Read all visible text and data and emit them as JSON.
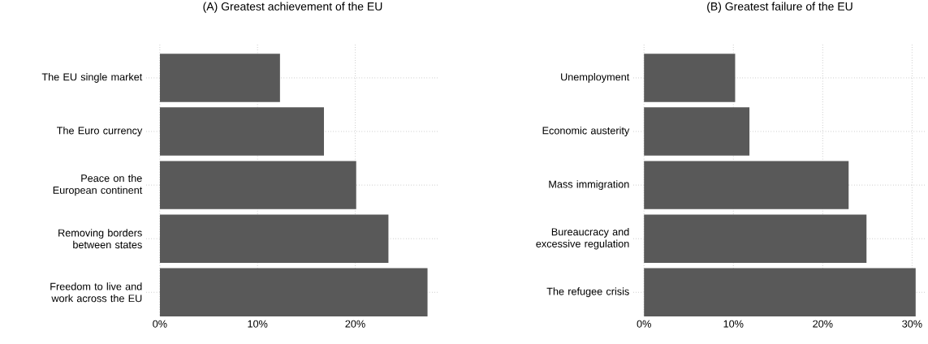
{
  "chart_data": [
    {
      "type": "bar",
      "orientation": "horizontal",
      "title": "(A) Greatest achievement of the EU",
      "categories": [
        "The EU single market",
        "The Euro currency",
        "Peace on the European continent",
        "Removing borders between states",
        "Freedom to live and work across the EU"
      ],
      "values": [
        12.3,
        16.8,
        20.1,
        23.4,
        27.4
      ],
      "color": "#595959",
      "xlim": [
        -1.4,
        28.6
      ],
      "xticks": [
        {
          "value": 0,
          "label": "0%"
        },
        {
          "value": 10,
          "label": "10%"
        },
        {
          "value": 20,
          "label": "20%"
        }
      ],
      "grid": true
    },
    {
      "type": "bar",
      "orientation": "horizontal",
      "title": "(B) Greatest failure of the EU",
      "categories": [
        "Unemployment",
        "Economic austerity",
        "Mass immigration",
        "Bureaucracy and excessive regulation",
        "The refugee crisis"
      ],
      "values": [
        10.2,
        11.8,
        22.9,
        24.9,
        30.4
      ],
      "color": "#595959",
      "xlim": [
        -1.2,
        31.6
      ],
      "xticks": [
        {
          "value": 0,
          "label": "0%"
        },
        {
          "value": 10,
          "label": "10%"
        },
        {
          "value": 20,
          "label": "20%"
        },
        {
          "value": 30,
          "label": "30%"
        }
      ],
      "grid": true
    }
  ]
}
